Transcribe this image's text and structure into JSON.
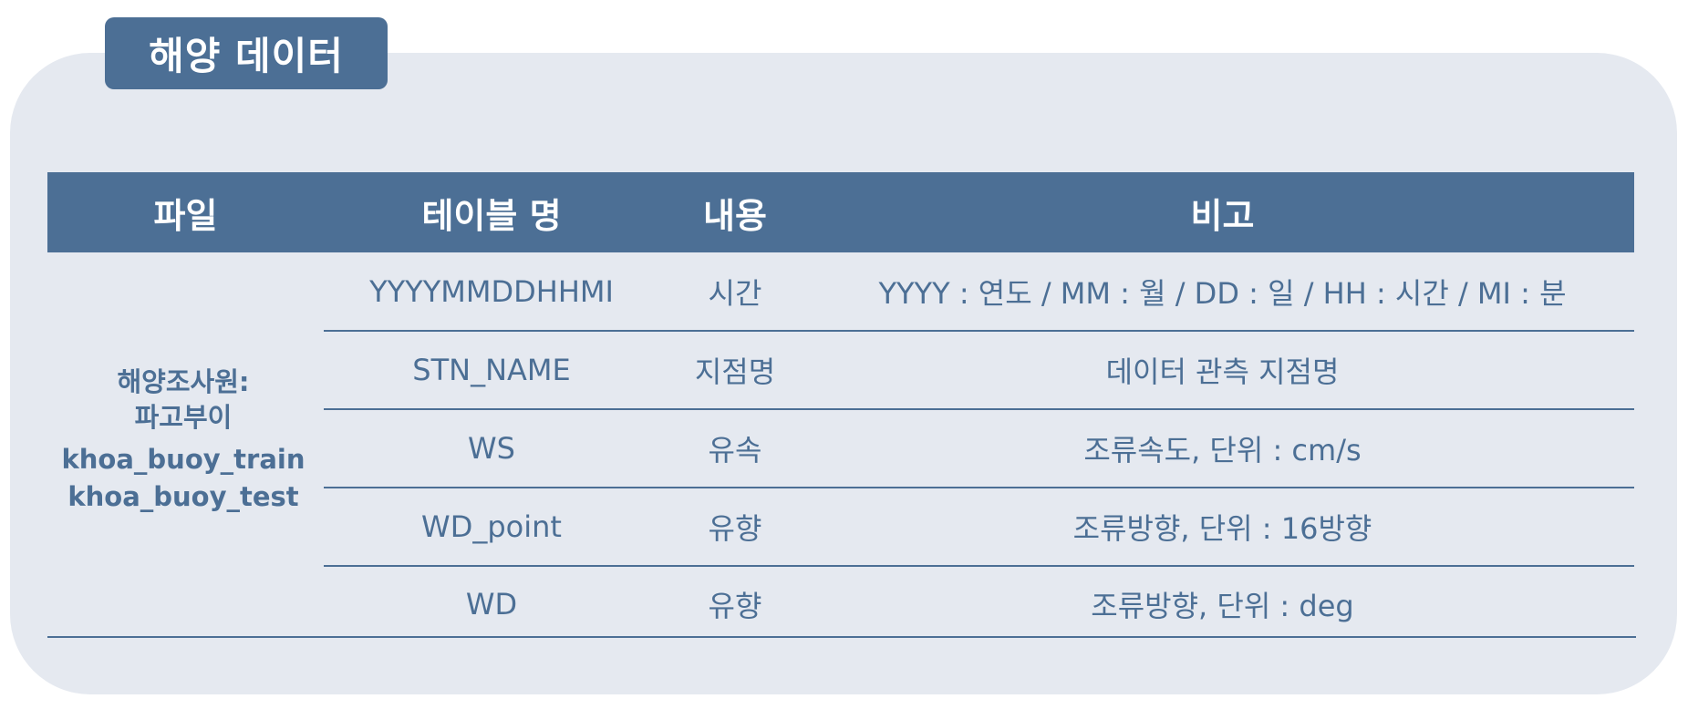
{
  "title": "해양 데이터",
  "table": {
    "headers": {
      "file": "파일",
      "table_name": "테이블 명",
      "content": "내용",
      "note": "비고"
    },
    "file": {
      "source_line1": "해양조사원:",
      "source_line2": "파고부이",
      "names": [
        "khoa_buoy_train",
        "khoa_buoy_test"
      ]
    },
    "rows": [
      {
        "table_name": "YYYYMMDDHHMI",
        "content": "시간",
        "note": "YYYY : 연도  /  MM : 월  /  DD : 일  /  HH : 시간  /  MI : 분"
      },
      {
        "table_name": "STN_NAME",
        "content": "지점명",
        "note": "데이터 관측 지점명"
      },
      {
        "table_name": "WS",
        "content": "유속",
        "note": "조류속도, 단위 : cm/s"
      },
      {
        "table_name": "WD_point",
        "content": "유향",
        "note": "조류방향, 단위 : 16방향"
      },
      {
        "table_name": "WD",
        "content": "유향",
        "note": "조류방향, 단위 : deg"
      }
    ]
  },
  "colors": {
    "accent": "#4c6f95",
    "panel_background": "#e5e9f0",
    "header_text": "#ffffff"
  }
}
